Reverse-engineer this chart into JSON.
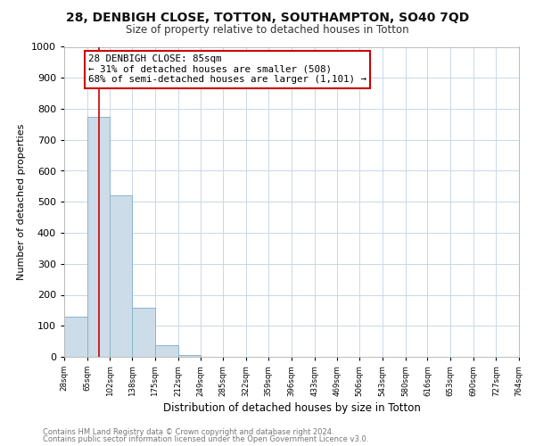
{
  "title": "28, DENBIGH CLOSE, TOTTON, SOUTHAMPTON, SO40 7QD",
  "subtitle": "Size of property relative to detached houses in Totton",
  "xlabel": "Distribution of detached houses by size in Totton",
  "ylabel": "Number of detached properties",
  "bar_edges": [
    28,
    65,
    102,
    138,
    175,
    212,
    249,
    285,
    322,
    359,
    396,
    433,
    469,
    506,
    543,
    580,
    616,
    653,
    690,
    727,
    764
  ],
  "bar_heights": [
    130,
    775,
    520,
    157,
    37,
    5,
    0,
    0,
    0,
    0,
    0,
    0,
    0,
    0,
    0,
    0,
    0,
    0,
    0,
    0
  ],
  "bar_color": "#ccdce8",
  "bar_edge_color": "#8ab4cc",
  "vline_x": 85,
  "vline_color": "#cc0000",
  "annotation_text": "28 DENBIGH CLOSE: 85sqm\n← 31% of detached houses are smaller (508)\n68% of semi-detached houses are larger (1,101) →",
  "annotation_box_color": "#ffffff",
  "annotation_box_edge": "#cc0000",
  "ylim": [
    0,
    1000
  ],
  "yticks": [
    0,
    100,
    200,
    300,
    400,
    500,
    600,
    700,
    800,
    900,
    1000
  ],
  "tick_labels": [
    "28sqm",
    "65sqm",
    "102sqm",
    "138sqm",
    "175sqm",
    "212sqm",
    "249sqm",
    "285sqm",
    "322sqm",
    "359sqm",
    "396sqm",
    "433sqm",
    "469sqm",
    "506sqm",
    "543sqm",
    "580sqm",
    "616sqm",
    "653sqm",
    "690sqm",
    "727sqm",
    "764sqm"
  ],
  "footer1": "Contains HM Land Registry data © Crown copyright and database right 2024.",
  "footer2": "Contains public sector information licensed under the Open Government Licence v3.0.",
  "bg_color": "#ffffff",
  "plot_bg_color": "#ffffff",
  "grid_color": "#c8d8e8"
}
